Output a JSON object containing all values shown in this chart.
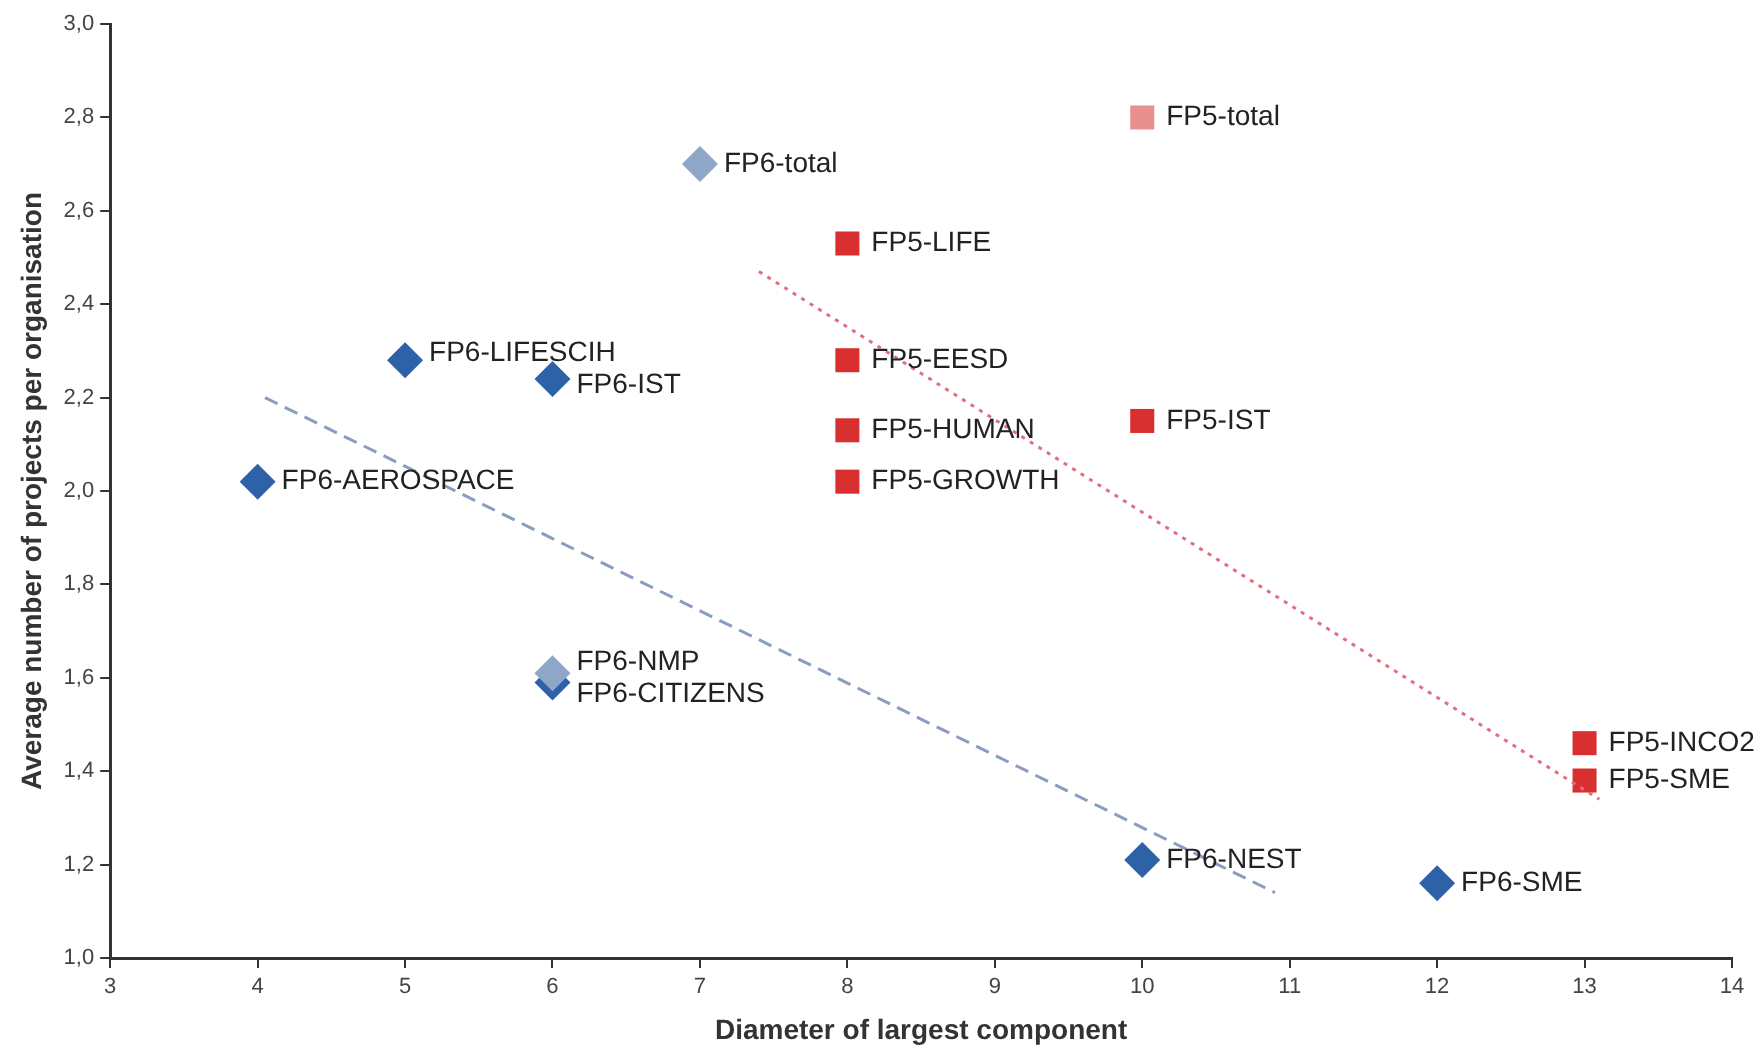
{
  "chart_data": {
    "type": "scatter",
    "xlabel": "Diameter of largest component",
    "ylabel": "Average number of projects per organisation",
    "xlim": [
      3,
      14
    ],
    "xticks": [
      3,
      4,
      5,
      6,
      7,
      8,
      9,
      10,
      11,
      12,
      13,
      14
    ],
    "ylim": [
      1.0,
      3.0
    ],
    "yticks": [
      {
        "value": 1.0,
        "label": "1,0"
      },
      {
        "value": 1.2,
        "label": "1,2"
      },
      {
        "value": 1.4,
        "label": "1,4"
      },
      {
        "value": 1.6,
        "label": "1,6"
      },
      {
        "value": 1.8,
        "label": "1,8"
      },
      {
        "value": 2.0,
        "label": "2,0"
      },
      {
        "value": 2.2,
        "label": "2,2"
      },
      {
        "value": 2.4,
        "label": "2,4"
      },
      {
        "value": 2.6,
        "label": "2,6"
      },
      {
        "value": 2.8,
        "label": "2,8"
      },
      {
        "value": 3.0,
        "label": "3,0"
      }
    ],
    "grid": false,
    "legend": false,
    "series": [
      {
        "type": "line",
        "color": "#8a9cc0",
        "line_style": "dashed",
        "marker": "none",
        "x": [
          4.05,
          10.9
        ],
        "values": [
          2.2,
          1.14
        ]
      },
      {
        "type": "line",
        "color": "#e07080",
        "line_style": "dotted",
        "marker": "none",
        "x": [
          7.4,
          13.1
        ],
        "values": [
          2.47,
          1.34
        ]
      },
      {
        "marker": "diamond",
        "color": "#8ea6c8",
        "x": [
          7,
          6
        ],
        "values": [
          2.7,
          1.61
        ],
        "value_labels": [
          "FP6-total",
          "FP6-NMP"
        ]
      },
      {
        "marker": "diamond",
        "color": "#2d62a8",
        "x": [
          5,
          6,
          4,
          6,
          10,
          12
        ],
        "values": [
          2.28,
          2.24,
          2.02,
          1.59,
          1.21,
          1.16
        ],
        "value_labels": [
          "FP6-LIFESCIH",
          "FP6-IST",
          "FP6-AEROSPACE",
          "FP6-CITIZENS",
          "FP6-NEST",
          "FP6-SME"
        ]
      },
      {
        "marker": "square",
        "color": "#e89090",
        "x": [
          10
        ],
        "values": [
          2.8
        ],
        "value_labels": [
          "FP5-total"
        ]
      },
      {
        "marker": "square",
        "color": "#d83030",
        "x": [
          8,
          8,
          8,
          8,
          10,
          13,
          13
        ],
        "values": [
          2.53,
          2.28,
          2.13,
          2.02,
          2.15,
          1.46,
          1.38
        ],
        "value_labels": [
          "FP5-LIFE",
          "FP5-EESD",
          "FP5-HUMAN",
          "FP5-GROWTH",
          "FP5-IST",
          "FP5-INCO2",
          "FP5-SME"
        ]
      }
    ]
  }
}
